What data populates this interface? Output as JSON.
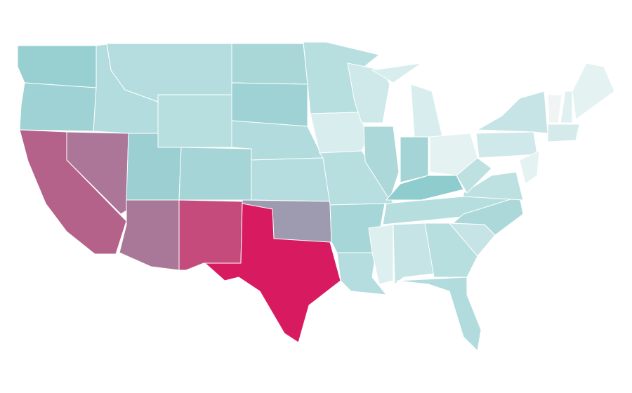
{
  "regions": [
    {
      "color": "#98cfd1"
    },
    {
      "color": "#9fd2d4"
    },
    {
      "color": "#b5628a"
    },
    {
      "color": "#ac7698"
    },
    {
      "color": "#b2dcde"
    },
    {
      "color": "#b5dddf"
    },
    {
      "color": "#b8dfe0"
    },
    {
      "color": "#9ccfd2"
    },
    {
      "color": "#a97898"
    },
    {
      "color": "#a6d5d7"
    },
    {
      "color": "#c44b7c"
    },
    {
      "color": "#a9d7d8"
    },
    {
      "color": "#9fd2d4"
    },
    {
      "color": "#b1dbdd"
    },
    {
      "color": "#b5dddf"
    },
    {
      "color": "#9e9ab0"
    },
    {
      "color": "#d81b60"
    },
    {
      "color": "#b8dfe0"
    },
    {
      "color": "#d8eded"
    },
    {
      "color": "#b8dfe0"
    },
    {
      "color": "#a7d6d8"
    },
    {
      "color": "#b5dddf"
    },
    {
      "color": "#cfe8e9"
    },
    {
      "color": "#acd8da"
    },
    {
      "color": "#d8eded"
    },
    {
      "color": "#a4d4d6"
    },
    {
      "color": "#e4f2f2"
    },
    {
      "color": "#8fcccd"
    },
    {
      "color": "#b7dedf"
    },
    {
      "color": "#ddefef"
    },
    {
      "color": "#c6e4e5"
    },
    {
      "color": "#b8dfe0"
    },
    {
      "color": "#b2dbdd"
    },
    {
      "color": "#c6e4e5"
    },
    {
      "color": "#acd8da"
    },
    {
      "color": "#bde0e1"
    },
    {
      "color": "#bde0e1"
    },
    {
      "color": "#cfe8e9"
    },
    {
      "color": "#c6e4e5"
    },
    {
      "color": "#e4f2f2"
    },
    {
      "color": "#f0f4f4"
    },
    {
      "color": "#e0f0f0"
    },
    {
      "color": "#e4f2f2"
    },
    {
      "color": "#d5eaeb"
    }
  ]
}
